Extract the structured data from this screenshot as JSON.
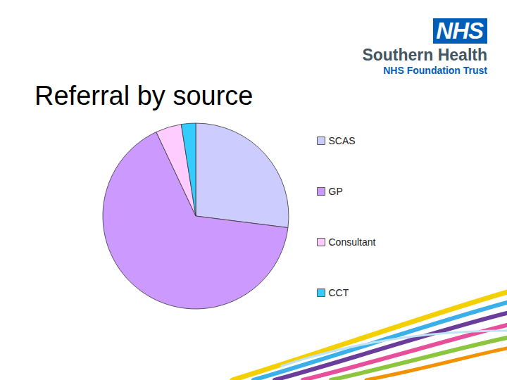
{
  "header": {
    "logo": "NHS",
    "organisation": "Southern Health",
    "trust": "NHS Foundation Trust"
  },
  "chart_data": {
    "type": "pie",
    "title": "Referral by source",
    "categories": [
      "SCAS",
      "GP",
      "Consultant",
      "CCT"
    ],
    "values": [
      27,
      66,
      4.5,
      2.5
    ],
    "colors": [
      "#ccccff",
      "#cc99ff",
      "#ffccff",
      "#33ccff"
    ],
    "legend": "right"
  }
}
